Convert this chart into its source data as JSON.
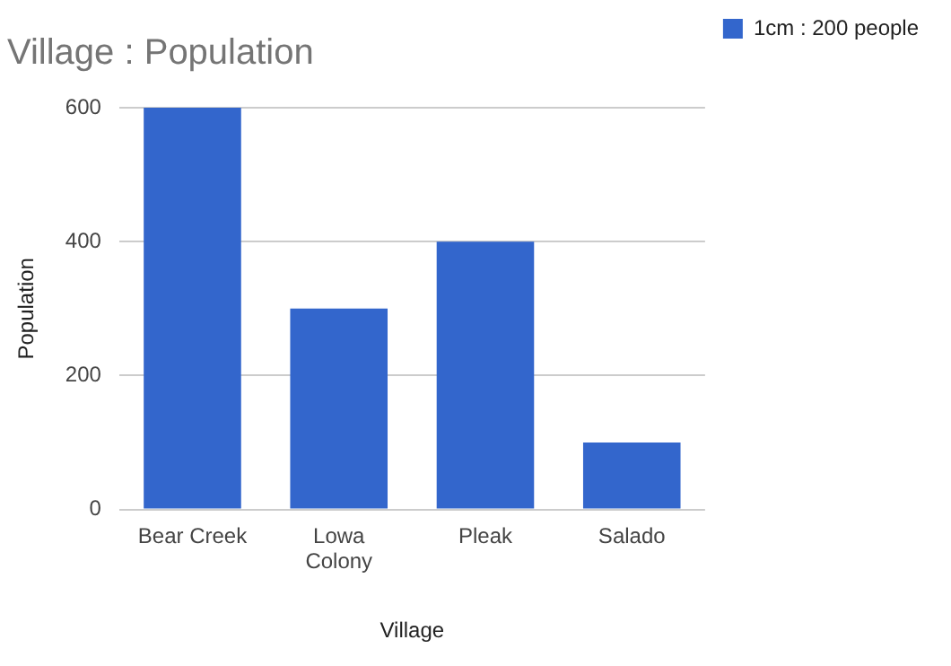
{
  "chart_data": {
    "type": "bar",
    "title": "Village : Population",
    "xlabel": "Village",
    "ylabel": "Population",
    "categories": [
      "Bear Creek",
      "Lowa Colony",
      "Pleak",
      "Salado"
    ],
    "series": [
      {
        "name": "1cm : 200 people",
        "color": "#3366cc",
        "values": [
          600,
          300,
          400,
          100
        ]
      }
    ],
    "ylim": [
      0,
      600
    ],
    "yticks": [
      0,
      200,
      400,
      600
    ],
    "grid": "y",
    "legend": "top right"
  }
}
